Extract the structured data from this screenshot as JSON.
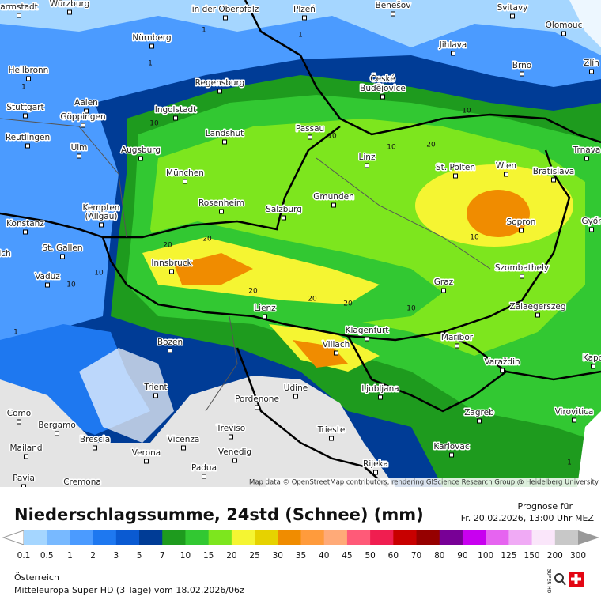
{
  "map": {
    "cities": [
      "armstadt",
      "Würzburg",
      "in der Oberpfalz",
      "Plzeň",
      "Benešov",
      "Svitavy",
      "Olomouc",
      "Nürnberg",
      "Jihlava",
      "Zlín",
      "Heilbronn",
      "Brno",
      "Regensburg",
      "České",
      "Budějovice",
      "Aalen",
      "Stuttgart",
      "Ingolstadt",
      "Göppingen",
      "Reutlingen",
      "Landshut",
      "Passau",
      "Ulm",
      "Augsburg",
      "Trnava",
      "Linz",
      "St. Pölten",
      "Wien",
      "Bratislava",
      "München",
      "Gmunden",
      "Kempten",
      "(Allgäu)",
      "Rosenheim",
      "Salzburg",
      "Konstanz",
      "Sopron",
      "Győr",
      "St. Gallen",
      "Innsbruck",
      "Szombathely",
      "Vaduz",
      "Graz",
      "Lienz",
      "Zalaegerszeg",
      "Klagenfurt",
      "Maribor",
      "Bozen",
      "Villach",
      "Kapo",
      "Varaždin",
      "Trient",
      "Udine",
      "Ljubljana",
      "Pordenone",
      "Virovitica",
      "Como",
      "Zagreb",
      "Bergamo",
      "Treviso",
      "Trieste",
      "Brescia",
      "Vicenza",
      "Mailand",
      "Karlovac",
      "Verona",
      "Venedig",
      "Padua",
      "Rijeka",
      "Pavia",
      "Cremona",
      "ich"
    ],
    "contour_labels": [
      "1",
      "1",
      "1",
      "1",
      "10",
      "10",
      "10",
      "10",
      "20",
      "20",
      "20",
      "20",
      "10",
      "10",
      "20",
      "10",
      "1",
      "1",
      "10",
      "20"
    ],
    "attribution": "Map data © OpenStreetMap contributors, rendering GIScience Research Group @ Heidelberg University"
  },
  "footer": {
    "title": "Niederschlagssumme, 24std (Schnee) (mm)",
    "forecast_label": "Prognose für",
    "forecast_time": "Fr. 20.02.2026, 13:00 Uhr MEZ",
    "region": "Österreich",
    "model": "Mitteleuropa Super HD  (3 Tage)  vom  18.02.2026/06z",
    "logo_text": "SUPER HD"
  },
  "legend": {
    "labels": [
      "0.1",
      "0.5",
      "1",
      "2",
      "3",
      "5",
      "7",
      "10",
      "15",
      "20",
      "25",
      "30",
      "35",
      "40",
      "45",
      "50",
      "60",
      "70",
      "80",
      "90",
      "100",
      "125",
      "150",
      "200",
      "300"
    ],
    "colors": [
      "#a5d6ff",
      "#78b9ff",
      "#4b9bff",
      "#1e78f0",
      "#0a5ad2",
      "#003c96",
      "#1e9b1e",
      "#32c832",
      "#7de61e",
      "#f5f532",
      "#e6d200",
      "#f08c00",
      "#ff9b3c",
      "#ffaa78",
      "#ff5a78",
      "#f01e50",
      "#c80000",
      "#960000",
      "#780096",
      "#c800f0",
      "#e664f0",
      "#f0aaf5",
      "#fae6fa",
      "#c8c8c8"
    ]
  }
}
